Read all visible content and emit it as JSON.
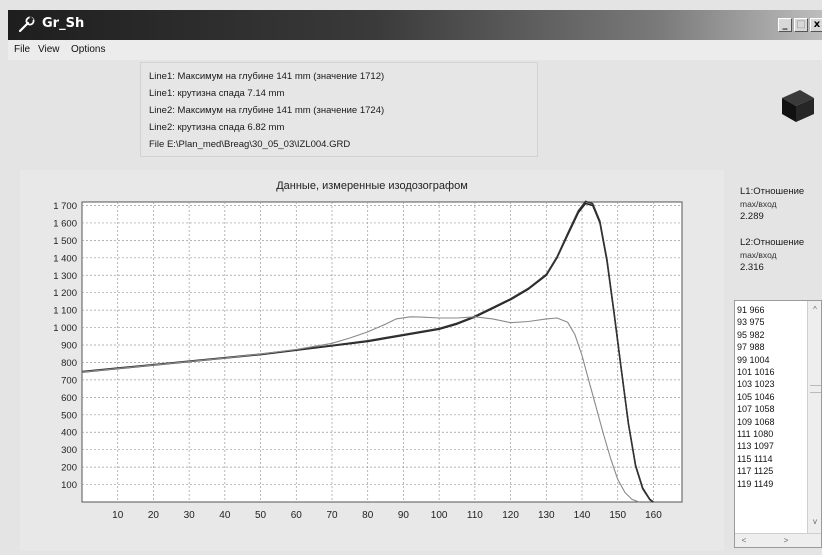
{
  "window": {
    "title": "Gr_Sh",
    "minimize_label": "_",
    "maximize_label": "□",
    "close_label": "x"
  },
  "menu": {
    "items": [
      "File",
      "View",
      "Options"
    ]
  },
  "info": {
    "lines": [
      "Line1: Максимум на глубине 141 mm  (значение 1712)",
      "Line1: крутизна спада 7.14 mm",
      "Line2: Максимум на глубине 141 mm  (значение 1724)",
      "Line2: крутизна спада 6.82 mm",
      "File E:\\Plan_med\\Breag\\30_05_03\\IZL004.GRD"
    ]
  },
  "ratios": [
    {
      "label": "L1:Отношение",
      "sub": "max/вход",
      "value": "2.289"
    },
    {
      "label": "L2:Отношение",
      "sub": "max/вход",
      "value": "2.316"
    }
  ],
  "list": {
    "items": [
      "91 966",
      "93 975",
      "95 982",
      "97 988",
      "99 1004",
      "101 1016",
      "103 1023",
      "105 1046",
      "107 1058",
      "109 1068",
      "111 1080",
      "113 1097",
      "115 1114",
      "117 1125",
      "119 1149"
    ],
    "scroll_up": "^",
    "scroll_down": "v",
    "scroll_left": "<",
    "scroll_right": ">"
  },
  "chart_data": {
    "type": "line",
    "title": "Данные, измеренные изодозографом",
    "xlabel": "",
    "ylabel": "",
    "xlim": [
      0,
      168
    ],
    "ylim": [
      0,
      1720
    ],
    "x_ticks": [
      10,
      20,
      30,
      40,
      50,
      60,
      70,
      80,
      90,
      100,
      110,
      120,
      130,
      140,
      150,
      160
    ],
    "y_ticks": [
      100,
      200,
      300,
      400,
      500,
      600,
      700,
      800,
      900,
      1000,
      1100,
      1200,
      1300,
      1400,
      1500,
      1600,
      1700
    ],
    "y_tick_labels": [
      "100",
      "200",
      "300",
      "400",
      "500",
      "600",
      "700",
      "800",
      "900",
      "1 000",
      "1 100",
      "1 200",
      "1 300",
      "1 400",
      "1 500",
      "1 600",
      "1 700"
    ],
    "grid": true,
    "series": [
      {
        "color": "#222222",
        "x": [
          0,
          10,
          20,
          30,
          40,
          50,
          60,
          70,
          80,
          90,
          100,
          105,
          110,
          115,
          120,
          125,
          130,
          133,
          136,
          139,
          141,
          143,
          145,
          147,
          149,
          151,
          153,
          155,
          157,
          159,
          160
        ],
        "y": [
          745,
          765,
          785,
          805,
          825,
          845,
          870,
          895,
          920,
          955,
          990,
          1020,
          1060,
          1110,
          1160,
          1220,
          1300,
          1400,
          1530,
          1660,
          1712,
          1700,
          1600,
          1380,
          1080,
          760,
          450,
          210,
          80,
          15,
          0
        ]
      },
      {
        "color": "#333333",
        "x": [
          0,
          10,
          20,
          30,
          40,
          50,
          60,
          70,
          80,
          90,
          100,
          105,
          110,
          115,
          120,
          125,
          130,
          133,
          136,
          139,
          141,
          143,
          145,
          147,
          149,
          151,
          153,
          155,
          157,
          159,
          160
        ],
        "y": [
          748,
          768,
          788,
          808,
          828,
          848,
          872,
          898,
          925,
          960,
          995,
          1025,
          1065,
          1115,
          1165,
          1225,
          1305,
          1405,
          1540,
          1670,
          1724,
          1710,
          1610,
          1390,
          1085,
          760,
          450,
          205,
          75,
          12,
          0
        ]
      },
      {
        "color": "#8a8a8a",
        "x": [
          0,
          10,
          20,
          30,
          40,
          50,
          60,
          70,
          75,
          80,
          85,
          88,
          92,
          95,
          100,
          105,
          110,
          115,
          120,
          125,
          130,
          133,
          136,
          138,
          140,
          142,
          144,
          146,
          148,
          150,
          152,
          154,
          156
        ],
        "y": [
          745,
          765,
          785,
          805,
          825,
          848,
          875,
          910,
          940,
          975,
          1020,
          1050,
          1062,
          1060,
          1055,
          1055,
          1062,
          1050,
          1028,
          1035,
          1050,
          1055,
          1030,
          960,
          840,
          690,
          540,
          390,
          250,
          130,
          55,
          15,
          0
        ]
      }
    ]
  }
}
